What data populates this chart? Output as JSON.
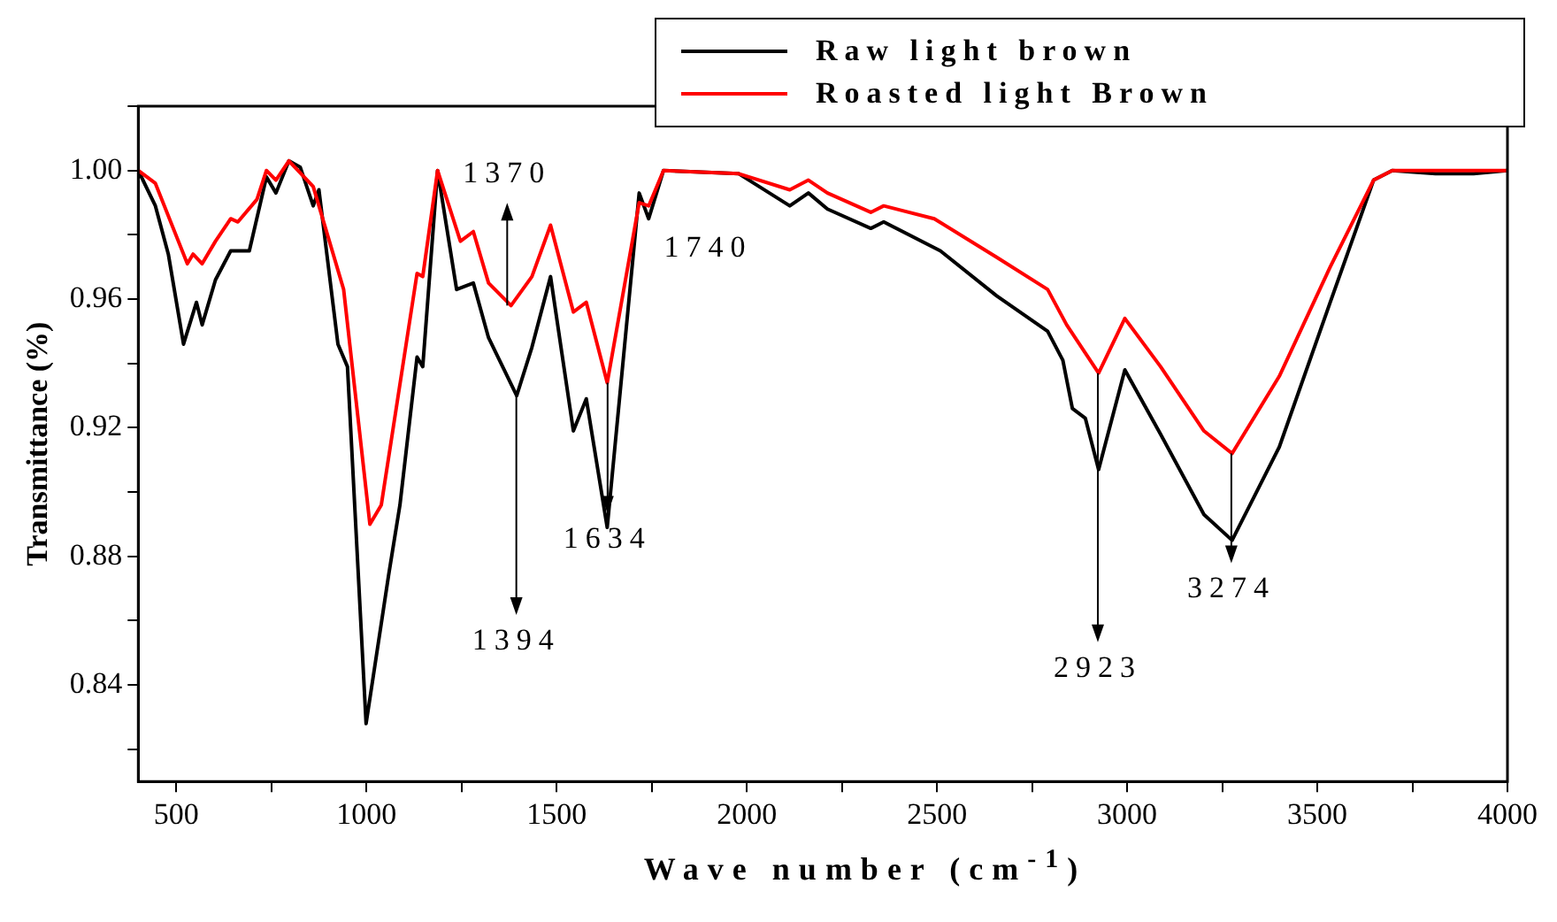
{
  "chart_data": {
    "type": "line",
    "xlabel": "Wave number (cm$^{-1}$)",
    "ylabel": "Transmittance (%)",
    "xlim": [
      400,
      4000
    ],
    "xticks": [
      500,
      {
        "value": 750,
        "label": null
      },
      1000,
      {
        "value": 1250,
        "label": null
      },
      1500,
      {
        "value": 1750,
        "label": null
      },
      2000,
      {
        "value": 2250,
        "label": null
      },
      2500,
      {
        "value": 2750,
        "label": null
      },
      3000,
      {
        "value": 3250,
        "label": null
      },
      3500,
      {
        "value": 3750,
        "label": null
      },
      4000
    ],
    "ylim": [
      0.81,
      1.02
    ],
    "yticks": [
      {
        "value": 0.82,
        "label": null
      },
      0.84,
      {
        "value": 0.86,
        "label": null
      },
      0.88,
      {
        "value": 0.9,
        "label": null
      },
      0.92,
      {
        "value": 0.94,
        "label": null
      },
      0.96,
      {
        "value": 0.98,
        "label": null
      },
      {
        "value": 1.0,
        "label": "1.00"
      },
      {
        "value": 1.02,
        "label": null
      }
    ],
    "grid": false,
    "legend": "top right",
    "marker": "none",
    "line_style": "solid",
    "series": [
      {
        "name": "Raw light brown",
        "color": "#000000",
        "x": [
          400,
          445,
          479,
          519,
          553,
          568,
          603,
          643,
          692,
          737,
          762,
          796,
          826,
          860,
          875,
          925,
          950,
          999,
          1058,
          1088,
          1133,
          1148,
          1187,
          1237,
          1281,
          1321,
          1395,
          1435,
          1484,
          1544,
          1578,
          1633,
          1717,
          1742,
          1781,
          1979,
          2113,
          2162,
          2212,
          2326,
          2360,
          2509,
          2657,
          2791,
          2831,
          2856,
          2890,
          2925,
          2994,
          3088,
          3202,
          3276,
          3400,
          3534,
          3648,
          3697,
          3811,
          3911,
          4000
        ],
        "values": [
          1.0,
          0.989,
          0.974,
          0.946,
          0.959,
          0.952,
          0.966,
          0.975,
          0.975,
          0.998,
          0.993,
          1.003,
          1.001,
          0.989,
          0.994,
          0.946,
          0.939,
          0.828,
          0.874,
          0.896,
          0.942,
          0.939,
          1.0,
          0.963,
          0.965,
          0.948,
          0.93,
          0.945,
          0.967,
          0.919,
          0.929,
          0.889,
          0.993,
          0.985,
          1.0,
          0.999,
          0.989,
          0.993,
          0.988,
          0.982,
          0.984,
          0.975,
          0.961,
          0.95,
          0.941,
          0.926,
          0.923,
          0.907,
          0.938,
          0.918,
          0.893,
          0.885,
          0.914,
          0.959,
          0.997,
          1.0,
          0.999,
          0.999,
          1.0
        ]
      },
      {
        "name": "Roasted light Brown",
        "color": "#ff0000",
        "x": [
          400,
          445,
          529,
          544,
          568,
          603,
          643,
          662,
          712,
          737,
          762,
          796,
          860,
          940,
          1009,
          1039,
          1133,
          1148,
          1187,
          1247,
          1281,
          1321,
          1380,
          1435,
          1484,
          1544,
          1578,
          1633,
          1717,
          1742,
          1781,
          1979,
          2113,
          2162,
          2212,
          2326,
          2360,
          2493,
          2657,
          2791,
          2841,
          2925,
          2994,
          3088,
          3202,
          3276,
          3400,
          3534,
          3648,
          3697,
          3811,
          3911,
          4000
        ],
        "values": [
          1.0,
          0.996,
          0.971,
          0.974,
          0.971,
          0.978,
          0.985,
          0.984,
          0.991,
          1.0,
          0.997,
          1.003,
          0.995,
          0.963,
          0.89,
          0.896,
          0.968,
          0.967,
          1.0,
          0.978,
          0.981,
          0.965,
          0.958,
          0.967,
          0.983,
          0.956,
          0.959,
          0.934,
          0.99,
          0.989,
          1.0,
          0.999,
          0.994,
          0.997,
          0.993,
          0.987,
          0.989,
          0.985,
          0.973,
          0.963,
          0.952,
          0.937,
          0.954,
          0.939,
          0.919,
          0.912,
          0.936,
          0.97,
          0.997,
          1.0,
          1.0,
          1.0,
          1.0
        ]
      }
    ],
    "annotations": [
      {
        "text": "1370",
        "x": 1370,
        "y": 0.958
      },
      {
        "text": "1394",
        "x": 1394,
        "y": 0.93
      },
      {
        "text": "1634",
        "x": 1634,
        "y": 0.934
      },
      {
        "text": "1740",
        "x": 1740,
        "y": 0.985
      },
      {
        "text": "2923",
        "x": 2923,
        "y": 0.937
      },
      {
        "text": "3274",
        "x": 3274,
        "y": 0.912
      }
    ]
  }
}
